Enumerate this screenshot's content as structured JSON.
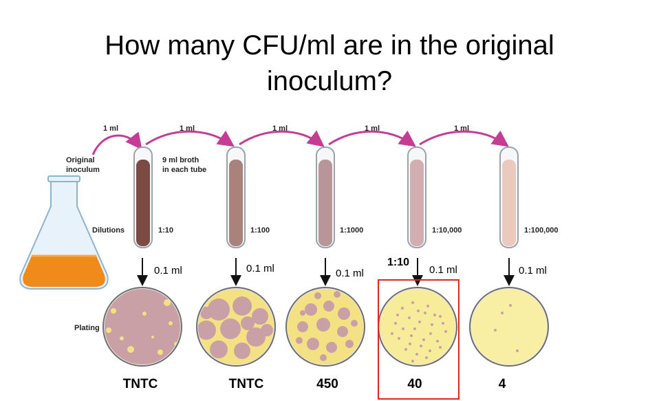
{
  "title": {
    "line1": "How many CFU/ml are in the original",
    "line2": "inoculum?"
  },
  "transfer_label": "1 ml",
  "labels": {
    "original_inoculum_1": "Original",
    "original_inoculum_2": "inoculum",
    "broth_1": "9 ml broth",
    "broth_2": "in each tube",
    "dilutions": "Dilutions",
    "plating": "Plating",
    "highlight_note": "1:10"
  },
  "tubes": [
    {
      "dilution": "1:10",
      "liquid": "#7b4a43",
      "volume": "0.1 ml",
      "count": "TNTC",
      "plate_color": "#c9a0a5"
    },
    {
      "dilution": "1:100",
      "liquid": "#a9837b",
      "volume": "0.1 ml",
      "count": "TNTC",
      "plate_color": "#c9a0a5"
    },
    {
      "dilution": "1:1000",
      "liquid": "#b89598",
      "volume": "0.1 ml",
      "count": "450",
      "plate_color": "#f3e184"
    },
    {
      "dilution": "1:10,000",
      "liquid": "#d2aeb0",
      "volume": "0.1 ml",
      "count": "40",
      "plate_color": "#f7ec9a"
    },
    {
      "dilution": "1:100,000",
      "liquid": "#ecc9bd",
      "volume": "0.1 ml",
      "count": "4",
      "plate_color": "#f8eea4"
    }
  ],
  "colors": {
    "arrow": "#c43c94",
    "flask_liquid": "#f08a1a",
    "highlight": "#e1261c"
  }
}
